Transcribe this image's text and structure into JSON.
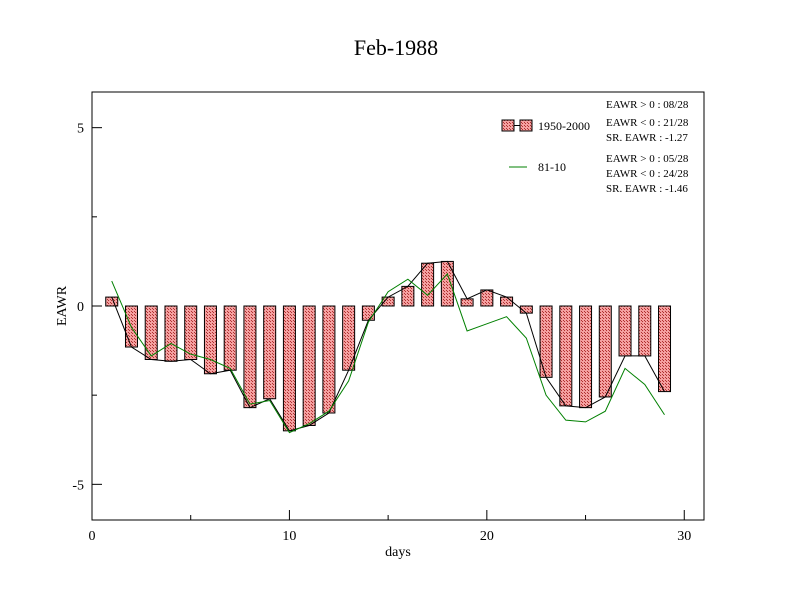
{
  "chart_data": {
    "type": "bar",
    "title": "Feb-1988",
    "xlabel": "days",
    "ylabel": "EAWR",
    "xlim": [
      0,
      31
    ],
    "ylim": [
      -6,
      6
    ],
    "xticks": [
      0,
      10,
      20,
      30
    ],
    "yticks": [
      -5,
      0,
      5
    ],
    "xtick_labels": [
      "0",
      "10",
      "20",
      "30"
    ],
    "ytick_labels": [
      "-5",
      "0",
      "5"
    ],
    "grid": false,
    "legend_position": "top-right",
    "x": [
      1,
      2,
      3,
      4,
      5,
      6,
      7,
      8,
      9,
      10,
      11,
      12,
      13,
      14,
      15,
      16,
      17,
      18,
      19,
      20,
      21,
      22,
      23,
      24,
      25,
      26,
      27,
      28,
      29
    ],
    "series": [
      {
        "name": "1950-2000",
        "render": "bar+line",
        "color": "#f08080",
        "line_color": "#000000",
        "values": [
          0.25,
          -1.15,
          -1.5,
          -1.55,
          -1.5,
          -1.9,
          -1.8,
          -2.85,
          -2.6,
          -3.5,
          -3.35,
          -3.0,
          -1.8,
          -0.4,
          0.25,
          0.55,
          1.2,
          1.25,
          0.2,
          0.45,
          0.25,
          -0.2,
          -2.0,
          -2.8,
          -2.85,
          -2.55,
          -1.4,
          -1.4,
          -2.4
        ],
        "stats": [
          "EAWR > 0 : 08/28",
          "EAWR < 0 : 21/28",
          "SR. EAWR : -1.27"
        ]
      },
      {
        "name": "81-10",
        "render": "line",
        "color": "#008000",
        "values": [
          0.7,
          -0.6,
          -1.4,
          -1.05,
          -1.35,
          -1.5,
          -1.75,
          -2.75,
          -2.65,
          -3.55,
          -3.3,
          -2.95,
          -2.1,
          -0.45,
          0.4,
          0.75,
          0.3,
          0.9,
          -0.7,
          -0.5,
          -0.3,
          -0.9,
          -2.5,
          -3.2,
          -3.25,
          -2.95,
          -1.75,
          -2.2,
          -3.05
        ],
        "stats": [
          "EAWR > 0 : 05/28",
          "EAWR < 0 : 24/28",
          "SR. EAWR : -1.46"
        ]
      }
    ]
  }
}
